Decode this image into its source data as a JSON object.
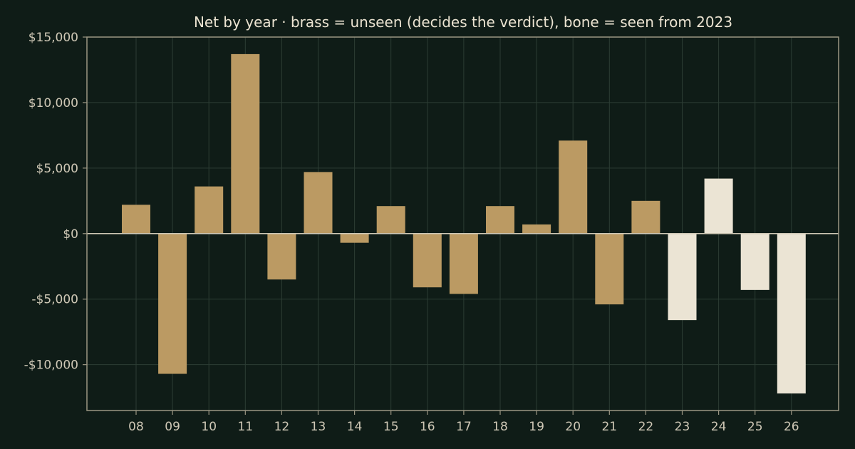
{
  "chart_data": {
    "type": "bar",
    "title": "Net by year  ·  brass = unseen (decides the verdict), bone = seen from 2023",
    "xlabel": "",
    "ylabel": "",
    "categories": [
      "08",
      "09",
      "10",
      "11",
      "12",
      "13",
      "14",
      "15",
      "16",
      "17",
      "18",
      "19",
      "20",
      "21",
      "22",
      "23",
      "24",
      "25",
      "26"
    ],
    "values": [
      2200,
      -10700,
      3600,
      13700,
      -3500,
      4700,
      -700,
      2100,
      -4100,
      -4600,
      2100,
      700,
      7100,
      -5400,
      2500,
      -6600,
      4200,
      -4300,
      -12200
    ],
    "groups": [
      "unseen",
      "unseen",
      "unseen",
      "unseen",
      "unseen",
      "unseen",
      "unseen",
      "unseen",
      "unseen",
      "unseen",
      "unseen",
      "unseen",
      "unseen",
      "unseen",
      "unseen",
      "seen",
      "seen",
      "seen",
      "seen"
    ],
    "ylim": [
      -13500,
      15000
    ],
    "yticks": [
      15000,
      10000,
      5000,
      0,
      -5000,
      -10000
    ],
    "ytick_labels": [
      "$15,000",
      "$10,000",
      "$5,000",
      "$0",
      "-$5,000",
      "-$10,000"
    ],
    "grid": true,
    "colors": {
      "unseen": "#bb9a63",
      "seen": "#ebe4d4",
      "background": "#0f1c17",
      "grid": "#2c3d34",
      "text": "#cfc8b6"
    }
  }
}
